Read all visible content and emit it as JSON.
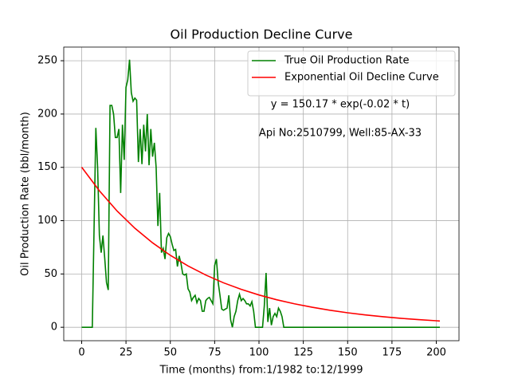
{
  "chart_data": {
    "type": "line",
    "title": "Oil Production Decline Curve",
    "x_label": "Time (months) from:1/1982 to:12/1999",
    "y_label": "Oil Production Rate (bbl/month)",
    "annotations": [
      "y = 150.17 * exp(-0.02 * t)",
      "Api No:2510799, Well:85-AX-33"
    ],
    "xlim": [
      -10.1,
      212.8
    ],
    "ylim": [
      -12.6,
      262.8
    ],
    "xticks": [
      0,
      25,
      50,
      75,
      100,
      125,
      150,
      175,
      200
    ],
    "yticks": [
      0,
      50,
      100,
      150,
      200,
      250
    ],
    "grid": true,
    "legend": "upper right",
    "series": [
      {
        "name": "True Oil Production Rate",
        "color": "#008000",
        "x": [
          0,
          6,
          8,
          9,
          10,
          11,
          12,
          13,
          14,
          15,
          16,
          17,
          18,
          19,
          20,
          21,
          22,
          23,
          24,
          25,
          26,
          27,
          28,
          29,
          30,
          31,
          32,
          33,
          34,
          35,
          36,
          37,
          38,
          39,
          40,
          41,
          42,
          43,
          44,
          45,
          46,
          47,
          48,
          49,
          50,
          51,
          52,
          53,
          54,
          55,
          56,
          57,
          58,
          59,
          60,
          61,
          62,
          63,
          64,
          65,
          66,
          67,
          68,
          69,
          70,
          71,
          72,
          73,
          74,
          75,
          76,
          77,
          78,
          79,
          80,
          81,
          82,
          83,
          84,
          85,
          86,
          87,
          88,
          89,
          90,
          91,
          92,
          93,
          94,
          95,
          96,
          97,
          98,
          99,
          100,
          101,
          102,
          103,
          104,
          105,
          106,
          107,
          108,
          109,
          110,
          111,
          112,
          113,
          114,
          202
        ],
        "values": [
          0,
          0,
          187,
          150,
          86,
          70,
          86,
          65,
          42,
          35,
          208,
          208,
          200,
          178,
          178,
          186,
          126,
          190,
          157,
          225,
          232,
          251,
          220,
          212,
          215,
          213,
          155,
          186,
          153,
          190,
          165,
          200,
          152,
          186,
          160,
          173,
          150,
          95,
          126,
          70,
          74,
          64,
          84,
          88,
          85,
          78,
          72,
          73,
          57,
          67,
          60,
          50,
          49,
          50,
          36,
          33,
          25,
          28,
          30,
          23,
          27,
          25,
          15,
          15,
          25,
          27,
          28,
          25,
          22,
          58,
          64,
          42,
          30,
          17,
          16,
          17,
          18,
          30,
          7,
          0,
          10,
          15,
          25,
          31,
          25,
          27,
          25,
          22,
          22,
          20,
          24,
          15,
          0,
          0,
          0,
          0,
          0,
          20,
          51,
          5,
          18,
          2,
          10,
          13,
          10,
          18,
          15,
          10,
          0,
          0
        ]
      },
      {
        "name": "Exponential Oil Decline Curve",
        "color": "#ff0000",
        "x": [
          0,
          10,
          20,
          30,
          40,
          50,
          60,
          70,
          80,
          90,
          100,
          110,
          120,
          130,
          140,
          150,
          160,
          170,
          180,
          190,
          200,
          202
        ],
        "values": [
          150.2,
          128.0,
          109.0,
          92.9,
          79.2,
          67.5,
          57.5,
          49.0,
          41.7,
          35.6,
          30.3,
          25.8,
          22.0,
          18.8,
          16.0,
          13.6,
          11.6,
          9.9,
          8.4,
          7.2,
          6.1,
          5.9
        ]
      }
    ]
  }
}
